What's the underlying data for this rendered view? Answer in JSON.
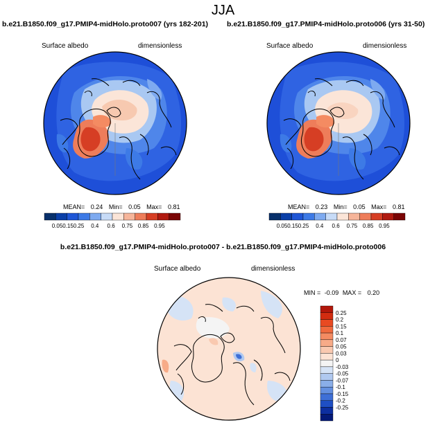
{
  "title": "JJA",
  "panels": [
    {
      "title": "b.e21.B1850.f09_g17.PMIP4-midHolo.proto007 (yrs 182-201)",
      "variable": "Surface albedo",
      "units": "dimensionless",
      "stats": {
        "mean_label": "MEAN=",
        "mean": "0.24",
        "min_label": "Min=",
        "min": "0.05",
        "max_label": "Max=",
        "max": "0.81"
      }
    },
    {
      "title": "b.e21.B1850.f09_g17.PMIP4-midHolo.proto006 (yrs 31-50)",
      "variable": "Surface albedo",
      "units": "dimensionless",
      "stats": {
        "mean_label": "MEAN=",
        "mean": "0.23",
        "min_label": "Min=",
        "min": "0.05",
        "max_label": "Max=",
        "max": "0.81"
      }
    },
    {
      "title": "b.e21.B1850.f09_g17.PMIP4-midHolo.proto007 - b.e21.B1850.f09_g17.PMIP4-midHolo.proto006",
      "variable": "Surface albedo",
      "units": "dimensionless",
      "stats": {
        "min_label": "MIN =",
        "min": "-0.09",
        "max_label": "MAX =",
        "max": "0.20"
      }
    }
  ],
  "albedo_colorbar": {
    "labels": [
      "0.05",
      "0.15",
      "0.25",
      "0.4",
      "0.6",
      "0.75",
      "0.85",
      "0.95"
    ],
    "colors": [
      "#08306b",
      "#0a3fa8",
      "#1f56d6",
      "#3d7ae6",
      "#7eaaf0",
      "#c7dbf7",
      "#fbe5d8",
      "#f6b59a",
      "#ee7d5a",
      "#d63e24",
      "#b01a10",
      "#7a0505"
    ]
  },
  "diff_colorbar": {
    "labels": [
      "0.25",
      "0.2",
      "0.15",
      "0.1",
      "0.07",
      "0.05",
      "0.03",
      "0",
      "-0.03",
      "-0.05",
      "-0.07",
      "-0.1",
      "-0.15",
      "-0.2",
      "-0.25"
    ],
    "colors": [
      "#b2170a",
      "#d22c10",
      "#e84a22",
      "#f06a3e",
      "#f48b62",
      "#f7ab88",
      "#f9c9b0",
      "#fce3d4",
      "#f4f4f4",
      "#d5e3f6",
      "#b0c9f0",
      "#8aaee8",
      "#6490e0",
      "#3e6fd6",
      "#1f4fc4",
      "#0d2fa0",
      "#041a78"
    ]
  }
}
